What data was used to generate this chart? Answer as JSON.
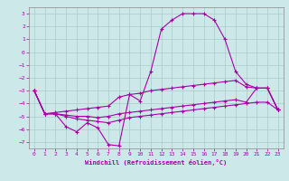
{
  "xlabel": "Windchill (Refroidissement éolien,°C)",
  "background_color": "#cce8e8",
  "grid_color": "#aacccc",
  "line_color": "#aa00aa",
  "xlim": [
    -0.5,
    23.5
  ],
  "ylim": [
    -7.5,
    3.5
  ],
  "yticks": [
    -7,
    -6,
    -5,
    -4,
    -3,
    -2,
    -1,
    0,
    1,
    2,
    3
  ],
  "xticks": [
    0,
    1,
    2,
    3,
    4,
    5,
    6,
    7,
    8,
    9,
    10,
    11,
    12,
    13,
    14,
    15,
    16,
    17,
    18,
    19,
    20,
    21,
    22,
    23
  ],
  "line1_x": [
    0,
    1,
    2,
    3,
    4,
    5,
    6,
    7,
    8,
    9,
    10,
    11,
    12,
    13,
    14,
    15,
    16,
    17,
    18,
    19,
    20,
    21,
    22,
    23
  ],
  "line1_y": [
    -3.0,
    -4.8,
    -4.8,
    -5.8,
    -6.2,
    -5.5,
    -5.9,
    -7.2,
    -7.3,
    -3.3,
    -3.8,
    -1.5,
    1.8,
    2.5,
    3.0,
    3.0,
    3.0,
    2.5,
    1.0,
    -1.5,
    -2.5,
    -2.8,
    -2.8,
    -4.5
  ],
  "line2_x": [
    0,
    1,
    2,
    3,
    4,
    5,
    6,
    7,
    8,
    9,
    10,
    11,
    12,
    13,
    14,
    15,
    16,
    17,
    18,
    19,
    20,
    21,
    22,
    23
  ],
  "line2_y": [
    -3.0,
    -4.8,
    -4.7,
    -4.6,
    -4.5,
    -4.4,
    -4.3,
    -4.2,
    -3.5,
    -3.3,
    -3.2,
    -3.0,
    -2.9,
    -2.8,
    -2.7,
    -2.6,
    -2.5,
    -2.4,
    -2.3,
    -2.2,
    -2.7,
    -2.8,
    -2.8,
    -4.5
  ],
  "line3_x": [
    0,
    1,
    2,
    3,
    4,
    5,
    6,
    7,
    8,
    9,
    10,
    11,
    12,
    13,
    14,
    15,
    16,
    17,
    18,
    19,
    20,
    21,
    22,
    23
  ],
  "line3_y": [
    -3.0,
    -4.8,
    -4.8,
    -4.9,
    -5.0,
    -5.0,
    -5.1,
    -5.0,
    -4.8,
    -4.7,
    -4.6,
    -4.5,
    -4.4,
    -4.3,
    -4.2,
    -4.1,
    -4.0,
    -3.9,
    -3.8,
    -3.7,
    -3.9,
    -2.8,
    -2.8,
    -4.5
  ],
  "line4_x": [
    0,
    1,
    2,
    3,
    4,
    5,
    6,
    7,
    8,
    9,
    10,
    11,
    12,
    13,
    14,
    15,
    16,
    17,
    18,
    19,
    20,
    21,
    22,
    23
  ],
  "line4_y": [
    -3.0,
    -4.8,
    -4.8,
    -5.0,
    -5.2,
    -5.3,
    -5.4,
    -5.5,
    -5.3,
    -5.1,
    -5.0,
    -4.9,
    -4.8,
    -4.7,
    -4.6,
    -4.5,
    -4.4,
    -4.3,
    -4.2,
    -4.1,
    -4.0,
    -3.9,
    -3.9,
    -4.5
  ]
}
